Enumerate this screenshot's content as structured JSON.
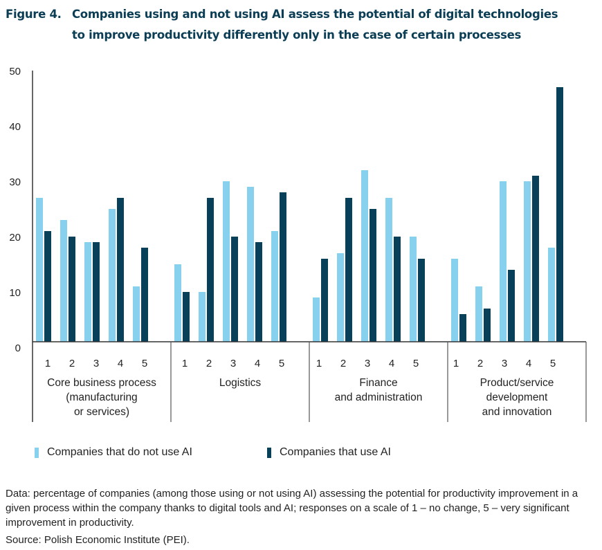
{
  "figure": {
    "number": "Figure 4.",
    "title_line1": "Companies using and not using AI assess the potential of digital technologies",
    "title_line2": "to improve productivity differently only in the case of certain processes"
  },
  "chart_data": {
    "type": "bar",
    "title": "Companies using and not using AI assess the potential of digital technologies to improve productivity differently only in the case of certain processes",
    "xlabel": "",
    "ylabel": "",
    "ylim": [
      0,
      50
    ],
    "yticks": [
      0,
      10,
      20,
      30,
      40,
      50
    ],
    "grid": false,
    "legend_position": "bottom-left",
    "groups": [
      {
        "label_lines": [
          "Core business process",
          "(manufacturing",
          "or services)"
        ]
      },
      {
        "label_lines": [
          "Logistics"
        ]
      },
      {
        "label_lines": [
          "Finance",
          "and administration"
        ]
      },
      {
        "label_lines": [
          "Product/service",
          "development",
          "and innovation"
        ]
      }
    ],
    "categories": [
      "1",
      "2",
      "3",
      "4",
      "5"
    ],
    "series": [
      {
        "name": "Companies that do not use AI",
        "color": "#87d1ee",
        "values": [
          [
            27,
            23,
            19,
            25,
            11
          ],
          [
            15,
            10,
            30,
            29,
            21
          ],
          [
            9,
            17,
            32,
            27,
            20
          ],
          [
            16,
            11,
            30,
            30,
            18
          ]
        ]
      },
      {
        "name": "Companies that use AI",
        "color": "#08405a",
        "values": [
          [
            21,
            20,
            19,
            27,
            18
          ],
          [
            10,
            27,
            20,
            19,
            28
          ],
          [
            16,
            27,
            25,
            20,
            16
          ],
          [
            6,
            7,
            14,
            31,
            47
          ]
        ]
      }
    ]
  },
  "legend": {
    "items": [
      {
        "label": "Companies that do not use AI",
        "color": "#87d1ee"
      },
      {
        "label": "Companies that use AI",
        "color": "#08405a"
      }
    ]
  },
  "notes": {
    "data": "Data: percentage of companies (among those using or not using AI) assessing the potential for productivity improvement in a given process within the company thanks to digital tools and AI; responses on a scale of 1 – no change, 5 – very significant improvement in productivity.",
    "source": "Source: Polish Economic Institute (PEI)."
  }
}
